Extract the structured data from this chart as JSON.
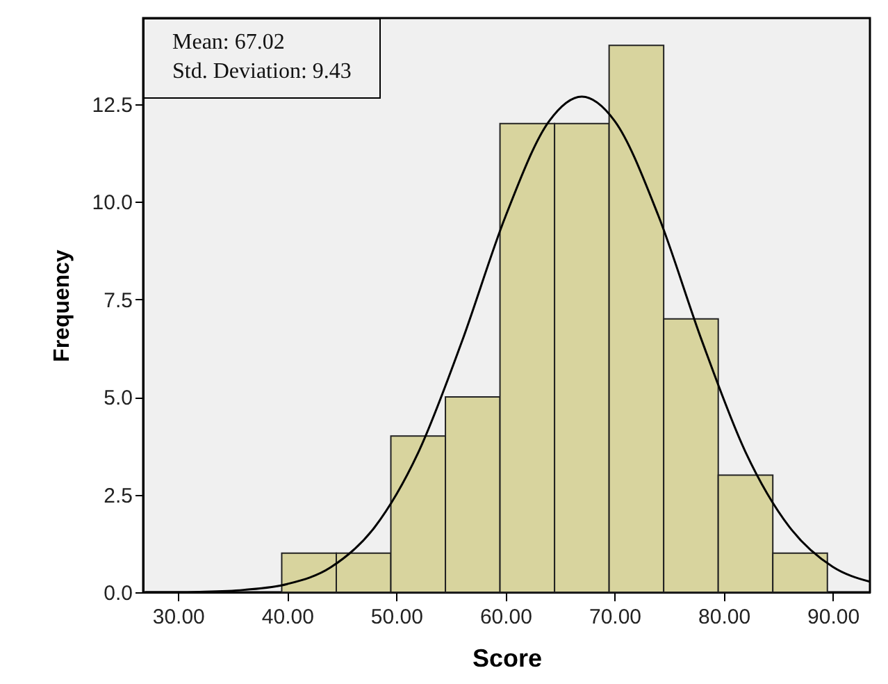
{
  "chart_data": {
    "type": "histogram",
    "xlabel": "Score",
    "ylabel": "Frequency",
    "bins": [
      39.5,
      44.5,
      49.5,
      54.5,
      59.5,
      64.5,
      69.5,
      74.5,
      79.5,
      84.5,
      89.5
    ],
    "values": [
      1,
      1,
      4,
      5,
      12,
      12,
      14,
      7,
      3,
      1
    ],
    "color": "#d8d49e",
    "series": [
      {
        "type": "line",
        "color": "#000000",
        "x": [
          27,
          30,
          32,
          36,
          40,
          44,
          48,
          52,
          56,
          60,
          64,
          67,
          70,
          74,
          78,
          82,
          86,
          90,
          93.4
        ],
        "values": [
          0.0,
          0.0,
          0.01,
          0.06,
          0.21,
          0.64,
          1.66,
          3.57,
          6.41,
          9.62,
          12.06,
          12.69,
          12.07,
          9.65,
          6.44,
          3.59,
          1.68,
          0.65,
          0.27
        ]
      }
    ],
    "annotations": [
      "Mean: 67.02",
      "Std. Deviation: 9.43"
    ],
    "xlim": [
      26.8,
      93.4
    ],
    "xticks": [
      {
        "value": 30,
        "label": "30.00"
      },
      {
        "value": 40,
        "label": "40.00"
      },
      {
        "value": 50,
        "label": "50.00"
      },
      {
        "value": 60,
        "label": "60.00"
      },
      {
        "value": 70,
        "label": "70.00"
      },
      {
        "value": 80,
        "label": "80.00"
      },
      {
        "value": 90,
        "label": "90.00"
      }
    ],
    "ylim": [
      0,
      14.7
    ],
    "yticks": [
      {
        "value": 0,
        "label": "0.0"
      },
      {
        "value": 2.5,
        "label": "2.5"
      },
      {
        "value": 5,
        "label": "5.0"
      },
      {
        "value": 7.5,
        "label": "7.5"
      },
      {
        "value": 10,
        "label": "10.0"
      },
      12.5
    ],
    "grid": false
  }
}
